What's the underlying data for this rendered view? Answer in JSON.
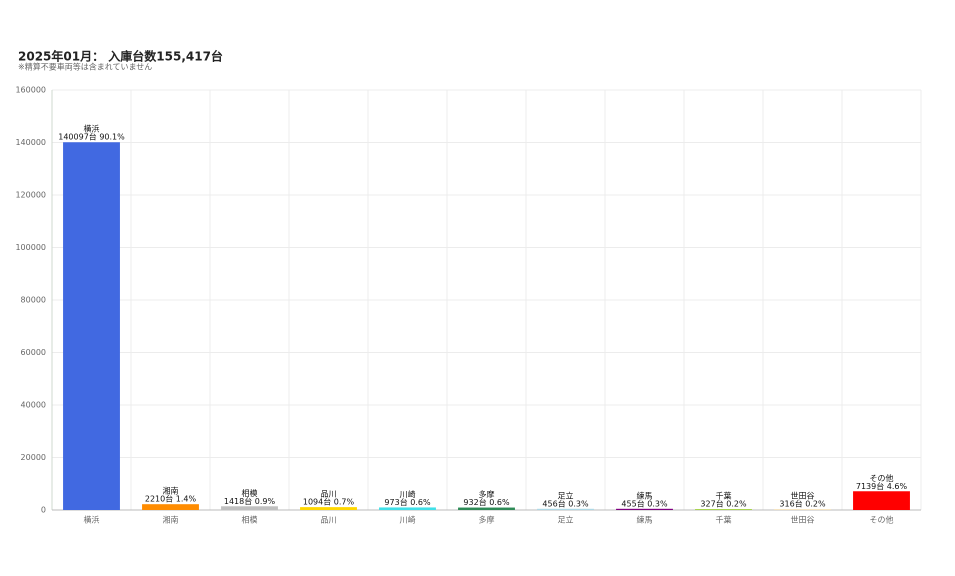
{
  "chart_data": {
    "type": "bar",
    "title": "2025年01月： 入庫台数155,417台",
    "subtitle": "※精算不要車両等は含まれていません",
    "categories": [
      "横浜",
      "湘南",
      "相模",
      "品川",
      "川崎",
      "多摩",
      "足立",
      "練馬",
      "千葉",
      "世田谷",
      "その他"
    ],
    "values": [
      140097,
      2210,
      1418,
      1094,
      973,
      932,
      456,
      455,
      327,
      316,
      7139
    ],
    "value_labels": [
      "140097台 90.1%",
      "2210台 1.4%",
      "1418台 0.9%",
      "1094台 0.7%",
      "973台 0.6%",
      "932台 0.6%",
      "456台 0.3%",
      "455台 0.3%",
      "327台 0.2%",
      "316台 0.2%",
      "7139台 4.6%"
    ],
    "colors": [
      "#4169e1",
      "#ff8c00",
      "#c0c0c0",
      "#ffd700",
      "#40e0e8",
      "#2e8b57",
      "#add8e6",
      "#800080",
      "#9acd32",
      "#f5deb3",
      "#ff0000"
    ],
    "ylim": [
      0,
      160000
    ],
    "yticks": [
      0,
      20000,
      40000,
      60000,
      80000,
      100000,
      120000,
      140000,
      160000
    ],
    "grid": true
  }
}
